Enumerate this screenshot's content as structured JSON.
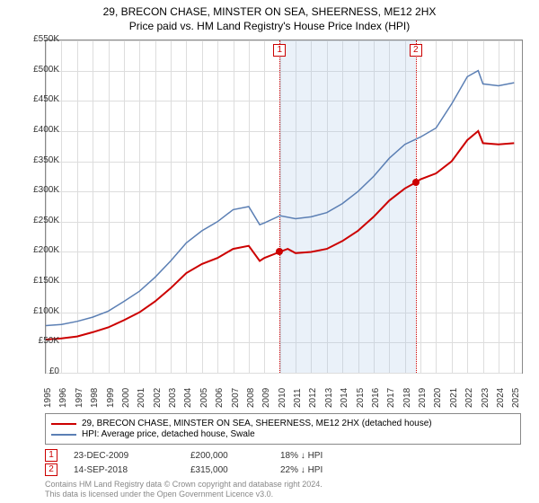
{
  "title": {
    "line1": "29, BRECON CHASE, MINSTER ON SEA, SHEERNESS, ME12 2HX",
    "line2": "Price paid vs. HM Land Registry's House Price Index (HPI)"
  },
  "chart": {
    "type": "line",
    "background_color": "#ffffff",
    "grid_color": "#dddddd",
    "border_color": "#888888",
    "x": {
      "min": 1995,
      "max": 2025.5,
      "ticks": [
        1995,
        1996,
        1997,
        1998,
        1999,
        2000,
        2001,
        2002,
        2003,
        2004,
        2005,
        2006,
        2007,
        2008,
        2009,
        2010,
        2011,
        2012,
        2013,
        2014,
        2015,
        2016,
        2017,
        2018,
        2019,
        2020,
        2021,
        2022,
        2023,
        2024,
        2025
      ]
    },
    "y": {
      "min": 0,
      "max": 550000,
      "ticks": [
        0,
        50000,
        100000,
        150000,
        200000,
        250000,
        300000,
        350000,
        400000,
        450000,
        500000,
        550000
      ],
      "tick_labels": [
        "£0",
        "£50K",
        "£100K",
        "£150K",
        "£200K",
        "£250K",
        "£300K",
        "£350K",
        "£400K",
        "£450K",
        "£500K",
        "£550K"
      ]
    },
    "series": {
      "property": {
        "color": "#cc0000",
        "width": 2,
        "label": "29, BRECON CHASE, MINSTER ON SEA, SHEERNESS, ME12 2HX (detached house)",
        "data": [
          [
            1995,
            55000
          ],
          [
            1996,
            57000
          ],
          [
            1997,
            60000
          ],
          [
            1998,
            67000
          ],
          [
            1999,
            75000
          ],
          [
            2000,
            87000
          ],
          [
            2001,
            100000
          ],
          [
            2002,
            118000
          ],
          [
            2003,
            140000
          ],
          [
            2004,
            165000
          ],
          [
            2005,
            180000
          ],
          [
            2006,
            190000
          ],
          [
            2007,
            205000
          ],
          [
            2008,
            210000
          ],
          [
            2008.7,
            185000
          ],
          [
            2009,
            190000
          ],
          [
            2009.98,
            200000
          ],
          [
            2010.5,
            205000
          ],
          [
            2011,
            198000
          ],
          [
            2012,
            200000
          ],
          [
            2013,
            205000
          ],
          [
            2014,
            218000
          ],
          [
            2015,
            235000
          ],
          [
            2016,
            258000
          ],
          [
            2017,
            285000
          ],
          [
            2018,
            305000
          ],
          [
            2018.7,
            315000
          ],
          [
            2019,
            320000
          ],
          [
            2020,
            330000
          ],
          [
            2021,
            350000
          ],
          [
            2022,
            385000
          ],
          [
            2022.7,
            400000
          ],
          [
            2023,
            380000
          ],
          [
            2024,
            378000
          ],
          [
            2025,
            380000
          ]
        ]
      },
      "hpi": {
        "color": "#5b7fb4",
        "width": 1.5,
        "label": "HPI: Average price, detached house, Swale",
        "data": [
          [
            1995,
            78000
          ],
          [
            1996,
            80000
          ],
          [
            1997,
            85000
          ],
          [
            1998,
            92000
          ],
          [
            1999,
            102000
          ],
          [
            2000,
            118000
          ],
          [
            2001,
            135000
          ],
          [
            2002,
            158000
          ],
          [
            2003,
            185000
          ],
          [
            2004,
            215000
          ],
          [
            2005,
            235000
          ],
          [
            2006,
            250000
          ],
          [
            2007,
            270000
          ],
          [
            2008,
            275000
          ],
          [
            2008.7,
            245000
          ],
          [
            2009,
            248000
          ],
          [
            2010,
            260000
          ],
          [
            2011,
            255000
          ],
          [
            2012,
            258000
          ],
          [
            2013,
            265000
          ],
          [
            2014,
            280000
          ],
          [
            2015,
            300000
          ],
          [
            2016,
            325000
          ],
          [
            2017,
            355000
          ],
          [
            2018,
            378000
          ],
          [
            2019,
            390000
          ],
          [
            2020,
            405000
          ],
          [
            2021,
            445000
          ],
          [
            2022,
            490000
          ],
          [
            2022.7,
            500000
          ],
          [
            2023,
            478000
          ],
          [
            2024,
            475000
          ],
          [
            2025,
            480000
          ]
        ]
      }
    },
    "marker_band": {
      "start": 2009.98,
      "end": 2018.7,
      "color": "rgba(173,200,230,0.25)"
    },
    "markers": [
      {
        "id": "1",
        "x": 2009.98,
        "y": 200000
      },
      {
        "id": "2",
        "x": 2018.7,
        "y": 315000
      }
    ],
    "marker_line_color": "#cc0000",
    "sale_dot_color": "#cc0000"
  },
  "sales": [
    {
      "id": "1",
      "date": "23-DEC-2009",
      "price": "£200,000",
      "diff": "18% ↓ HPI"
    },
    {
      "id": "2",
      "date": "14-SEP-2018",
      "price": "£315,000",
      "diff": "22% ↓ HPI"
    }
  ],
  "footer": {
    "line1": "Contains HM Land Registry data © Crown copyright and database right 2024.",
    "line2": "This data is licensed under the Open Government Licence v3.0."
  },
  "fonts": {
    "title_size": 12,
    "axis_size": 10,
    "legend_size": 10,
    "footer_size": 9
  }
}
